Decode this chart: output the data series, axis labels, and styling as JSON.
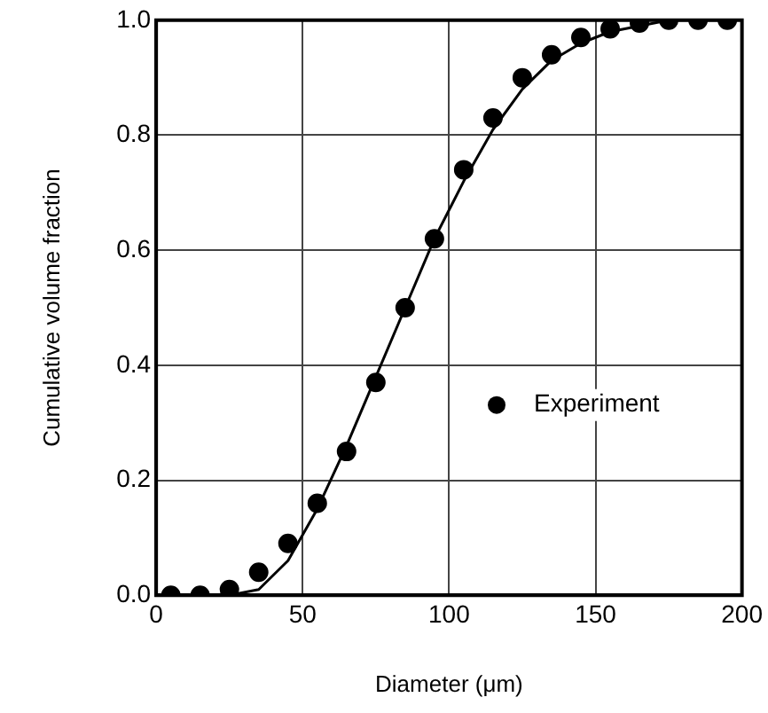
{
  "chart_data": {
    "type": "scatter",
    "xlabel": "Diameter (μm)",
    "ylabel": "Cumulative volume fraction",
    "xlim": [
      0,
      200
    ],
    "xticks": [
      0,
      50,
      100,
      150,
      200
    ],
    "ylim": [
      0,
      1
    ],
    "yticks": [
      {
        "value": 0,
        "label": "0.0"
      },
      {
        "value": 0.2,
        "label": "0.2"
      },
      {
        "value": 0.4,
        "label": "0.4"
      },
      {
        "value": 0.6,
        "label": "0.6"
      },
      {
        "value": 0.8,
        "label": "0.8"
      },
      {
        "value": 1,
        "label": "1.0"
      }
    ],
    "grid": true,
    "legend": "bottom right",
    "series": [
      {
        "name": "Experiment",
        "type": "scatter",
        "marker": "circle",
        "color": "#000000",
        "x": [
          5,
          15,
          25,
          35,
          45,
          55,
          65,
          75,
          85,
          95,
          105,
          115,
          125,
          135,
          145,
          155,
          165,
          175,
          185,
          195
        ],
        "values": [
          0,
          0,
          0.01,
          0.04,
          0.09,
          0.16,
          0.25,
          0.37,
          0.5,
          0.62,
          0.74,
          0.83,
          0.9,
          0.94,
          0.97,
          0.985,
          0.995,
          1,
          1,
          1
        ]
      },
      {
        "type": "line",
        "marker": "none",
        "color": "#000000",
        "x": [
          0,
          25,
          35,
          45,
          55,
          65,
          75,
          85,
          95,
          105,
          115,
          125,
          135,
          145,
          155,
          165,
          175,
          195
        ],
        "values": [
          0,
          0,
          0.01,
          0.06,
          0.15,
          0.26,
          0.38,
          0.5,
          0.62,
          0.72,
          0.81,
          0.88,
          0.93,
          0.96,
          0.98,
          0.99,
          1,
          1
        ]
      }
    ]
  }
}
